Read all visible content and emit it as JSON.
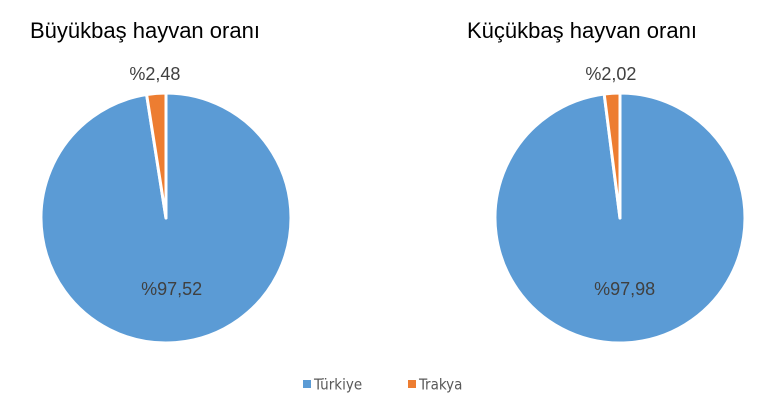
{
  "chart_data": [
    {
      "type": "pie",
      "title": "Büyükbaş hayvan oranı",
      "values": [
        97.52,
        2.48
      ],
      "value_labels": [
        "%97,52",
        "%2,48"
      ]
    },
    {
      "type": "pie",
      "title": "Küçükbaş hayvan oranı",
      "values": [
        97.98,
        2.02
      ],
      "value_labels": [
        "%97,98",
        "%2,02"
      ]
    }
  ],
  "legend": {
    "labels": [
      "Türkiye",
      "Trakya"
    ],
    "colors": [
      "#5b9bd5",
      "#ed7d31"
    ]
  }
}
